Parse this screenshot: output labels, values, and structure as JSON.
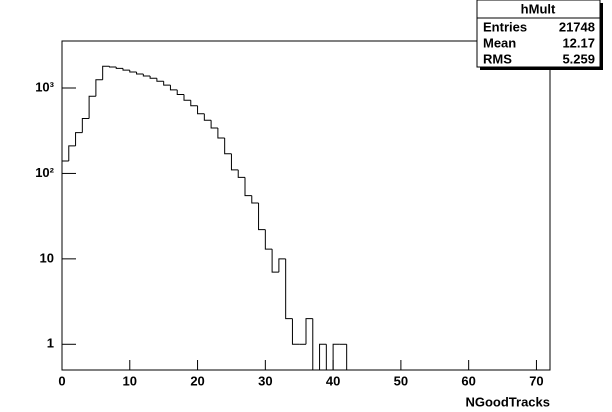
{
  "chart_data": {
    "type": "histogram",
    "title": "hMult",
    "x_label": "NGoodTracks",
    "stats": [
      {
        "label": "Entries",
        "value": "21748"
      },
      {
        "label": "Mean",
        "value": "12.17"
      },
      {
        "label": "RMS",
        "value": "5.259"
      }
    ],
    "bins": [
      0,
      1,
      2,
      3,
      4,
      5,
      6,
      7,
      8,
      9,
      10,
      11,
      12,
      13,
      14,
      15,
      16,
      17,
      18,
      19,
      20,
      21,
      22,
      23,
      24,
      25,
      26,
      27,
      28,
      29,
      30,
      31,
      32,
      33,
      34,
      35,
      36,
      37,
      38,
      39,
      40,
      41,
      42,
      43,
      44,
      45,
      46,
      47,
      48,
      49,
      50,
      51,
      52,
      53,
      54,
      55,
      56,
      57,
      58,
      59,
      60,
      61,
      62,
      63,
      64,
      65,
      66,
      67,
      68,
      69,
      70,
      71,
      72
    ],
    "values": [
      140,
      210,
      300,
      440,
      800,
      1250,
      1800,
      1760,
      1700,
      1620,
      1540,
      1460,
      1380,
      1300,
      1200,
      1080,
      950,
      840,
      720,
      620,
      500,
      420,
      340,
      260,
      170,
      110,
      90,
      55,
      45,
      22,
      13,
      7,
      10,
      2,
      1,
      1,
      2,
      0,
      1,
      0,
      1,
      1,
      0,
      0,
      0,
      0,
      0,
      0,
      0,
      0,
      0,
      0,
      0,
      0,
      0,
      0,
      0,
      0,
      0,
      0,
      0,
      0,
      0,
      0,
      0,
      0,
      0,
      0,
      0,
      0,
      0,
      0
    ],
    "color": "#000000",
    "log_y": true,
    "xlim": [
      0,
      72
    ],
    "xticks": [
      0,
      10,
      20,
      30,
      40,
      50,
      60,
      70
    ],
    "ylim": [
      0.5,
      3550
    ],
    "yticks": [
      1,
      10,
      {
        "value": 100,
        "label": "10²"
      },
      {
        "value": 1000,
        "label": "10³"
      }
    ]
  }
}
